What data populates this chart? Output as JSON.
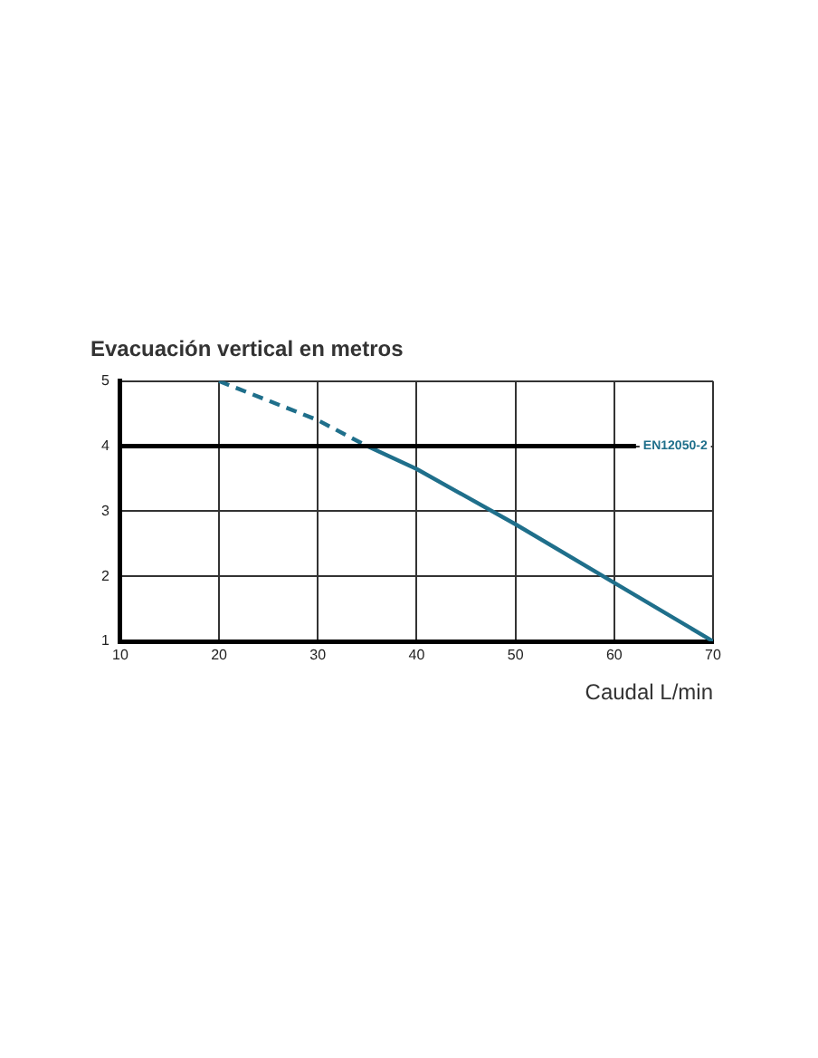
{
  "chart_data": {
    "type": "line",
    "title": "Evacuación vertical en metros",
    "xlabel": "Caudal L/min",
    "series": [
      {
        "color": "#1f6f8b",
        "line_style": "dashed",
        "x": [
          20,
          30,
          35
        ],
        "values": [
          5,
          4.4,
          4
        ]
      },
      {
        "color": "#1f6f8b",
        "line_style": "solid",
        "x": [
          35,
          40,
          50,
          60,
          70
        ],
        "values": [
          4,
          3.65,
          2.8,
          1.9,
          1
        ]
      }
    ],
    "xlim": [
      10,
      70
    ],
    "xticks": [
      10,
      20,
      30,
      40,
      50,
      60,
      70
    ],
    "ylim": [
      1,
      5
    ],
    "yticks": [
      1,
      2,
      3,
      4,
      5
    ],
    "ref_lines": [
      {
        "axis": "y",
        "value": 4,
        "label": "EN12050-2",
        "color": "#000000"
      }
    ],
    "grid": true,
    "marker": "none",
    "legend": false
  }
}
